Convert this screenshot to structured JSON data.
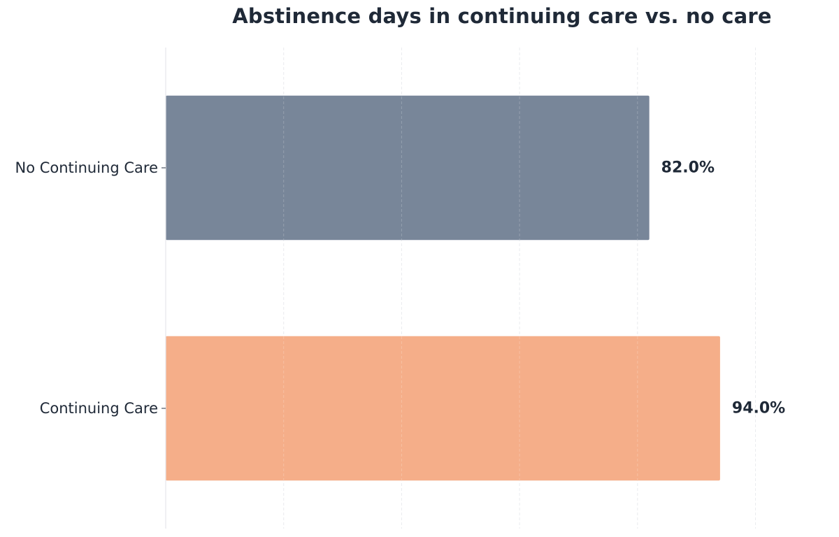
{
  "chart_data": {
    "type": "bar",
    "orientation": "horizontal",
    "title": "Abstinence days in continuing care vs. no care",
    "xlabel": "",
    "ylabel": "",
    "categories": [
      "No Continuing Care",
      "Continuing Care"
    ],
    "values": [
      82.0,
      94.0
    ],
    "value_labels": [
      "82.0%",
      "94.0%"
    ],
    "colors": [
      "#788699",
      "#f5ae89"
    ],
    "xlim": [
      0,
      100
    ],
    "grid": "vertical dashed",
    "x_ticks_shown": false
  }
}
